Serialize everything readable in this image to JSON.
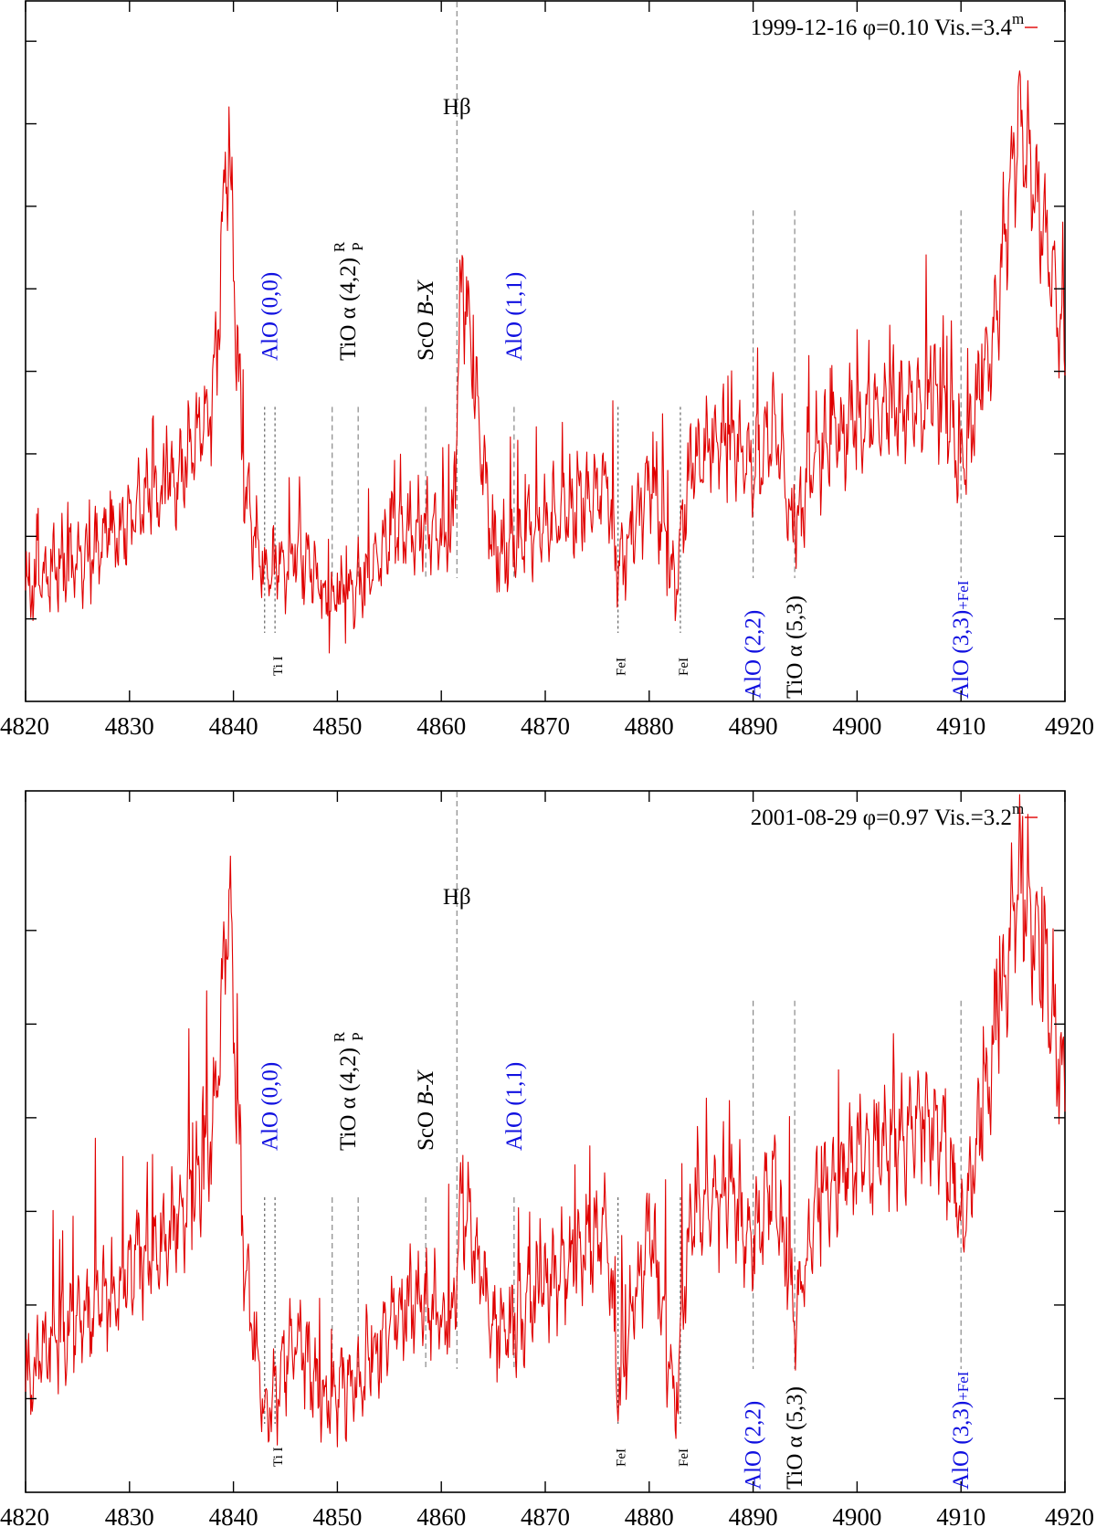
{
  "colors": {
    "spectrum": "#e00000",
    "blue_label": "#1010e0",
    "black_label": "#000000",
    "guide_line": "#888888"
  },
  "chart_data": [
    {
      "type": "line",
      "title": "",
      "xlabel": "",
      "ylabel": "",
      "xlim": [
        4820,
        4920
      ],
      "x_ticks": [
        4820,
        4830,
        4840,
        4850,
        4860,
        4870,
        4880,
        4890,
        4900,
        4910,
        4920
      ],
      "x_tick_labels": [
        "4820",
        "4830",
        "4840",
        "4850",
        "4860",
        "4870",
        "4880",
        "4890",
        "4900",
        "4910",
        "4920"
      ],
      "ylim": [
        0,
        8.5
      ],
      "y_ticks": [
        1,
        2,
        3,
        4,
        5,
        6,
        7,
        8
      ],
      "legend": {
        "position": "top-right",
        "entries": [
          {
            "text": "1999-12-16 φ=0.10 Vis.=3.4",
            "superscript": "m"
          }
        ]
      },
      "series": [
        {
          "name": "1999-12-16 φ=0.10 Vis.=3.4m",
          "x": [
            4820,
            4823,
            4826,
            4829,
            4832,
            4835,
            4838,
            4839.5,
            4841,
            4843,
            4846,
            4849,
            4852,
            4855,
            4858,
            4861,
            4862,
            4865,
            4868,
            4872,
            4876,
            4877,
            4880,
            4882.5,
            4884,
            4888,
            4890,
            4892,
            4894,
            4896,
            4900,
            4904,
            4908,
            4910,
            4913,
            4915.5,
            4918,
            4920
          ],
          "y": [
            1.3,
            1.6,
            1.8,
            2.1,
            2.5,
            2.8,
            3.5,
            6.7,
            2.6,
            1.5,
            1.8,
            1.2,
            1.4,
            2.0,
            2.2,
            1.9,
            5.2,
            1.8,
            2.0,
            2.3,
            2.6,
            1.5,
            2.7,
            1.5,
            2.9,
            3.2,
            2.8,
            3.4,
            2.0,
            3.0,
            3.4,
            3.6,
            3.7,
            2.8,
            4.4,
            7.0,
            5.8,
            4.2
          ]
        }
      ],
      "annotations": [
        {
          "text": "Hβ",
          "x": 4861.5,
          "color": "black",
          "orientation": "horizontal",
          "placement": "top"
        },
        {
          "text": "AlO (0,0)",
          "x": 4843.5,
          "color": "blue",
          "orientation": "vertical",
          "placement": "upper"
        },
        {
          "text": "TiO α (4,2)",
          "sup": "R",
          "sub": "P",
          "x": 4851,
          "color": "black",
          "orientation": "vertical",
          "placement": "upper"
        },
        {
          "text": "ScO ",
          "italic": "B-X",
          "x": 4858.5,
          "color": "black",
          "orientation": "vertical",
          "placement": "upper"
        },
        {
          "text": "AlO (1,1)",
          "x": 4867,
          "color": "blue",
          "orientation": "vertical",
          "placement": "upper"
        },
        {
          "text": "Ti I",
          "x": 4844,
          "color": "black",
          "orientation": "vertical",
          "placement": "bottom",
          "size": "small"
        },
        {
          "text": "FeI",
          "x": 4877,
          "color": "black",
          "orientation": "vertical",
          "placement": "bottom",
          "size": "small"
        },
        {
          "text": "FeI",
          "x": 4883,
          "color": "black",
          "orientation": "vertical",
          "placement": "bottom",
          "size": "small"
        },
        {
          "text": "AlO (2,2)",
          "x": 4890,
          "color": "blue",
          "orientation": "vertical",
          "placement": "lower"
        },
        {
          "text": "TiO α (5,3)",
          "x": 4894,
          "color": "black",
          "orientation": "vertical",
          "placement": "lower"
        },
        {
          "text": "AlO (3,3)",
          "suffix": "+FeI",
          "x": 4910,
          "color": "blue",
          "orientation": "vertical",
          "placement": "lower"
        }
      ],
      "guide_lines": [
        4843,
        4844,
        4849.5,
        4852,
        4858.5,
        4861.5,
        4867,
        4877,
        4883,
        4890,
        4894,
        4910
      ]
    },
    {
      "type": "line",
      "title": "",
      "xlabel": "",
      "ylabel": "",
      "xlim": [
        4820,
        4920
      ],
      "x_ticks": [
        4820,
        4830,
        4840,
        4850,
        4860,
        4870,
        4880,
        4890,
        4900,
        4910,
        4920
      ],
      "x_tick_labels": [
        "4820",
        "4830",
        "4840",
        "4850",
        "4860",
        "4870",
        "4880",
        "4890",
        "4900",
        "4910",
        "4920"
      ],
      "ylim": [
        0,
        7.5
      ],
      "y_ticks": [
        1,
        2,
        3,
        4,
        5,
        6
      ],
      "legend": {
        "position": "top-right",
        "entries": [
          {
            "text": "2001-08-29 φ=0.97 Vis.=3.2",
            "superscript": "m"
          }
        ]
      },
      "series": [
        {
          "name": "2001-08-29 φ=0.97 Vis.=3.2m",
          "x": [
            4820,
            4823,
            4826,
            4829,
            4832,
            4835,
            4838,
            4839.5,
            4841,
            4843,
            4846,
            4849,
            4852,
            4855,
            4858,
            4861,
            4862,
            4865,
            4868,
            4872,
            4876,
            4877,
            4880,
            4882.5,
            4884,
            4888,
            4890,
            4892,
            4894,
            4896,
            4900,
            4904,
            4908,
            4910,
            4913,
            4915.5,
            4918,
            4920
          ],
          "y": [
            1.2,
            1.6,
            1.9,
            2.2,
            2.6,
            2.9,
            3.8,
            6.4,
            2.5,
            0.8,
            1.6,
            1.0,
            1.2,
            1.8,
            2.1,
            1.8,
            3.2,
            1.7,
            1.9,
            2.4,
            2.8,
            1.0,
            2.9,
            0.9,
            3.0,
            3.2,
            2.6,
            3.4,
            1.8,
            3.0,
            3.6,
            3.8,
            4.0,
            2.8,
            4.6,
            6.6,
            5.6,
            4.2
          ]
        }
      ],
      "annotations": [
        {
          "text": "Hβ",
          "x": 4861.5,
          "color": "black",
          "orientation": "horizontal",
          "placement": "top"
        },
        {
          "text": "AlO (0,0)",
          "x": 4843.5,
          "color": "blue",
          "orientation": "vertical",
          "placement": "upper"
        },
        {
          "text": "TiO α (4,2)",
          "sup": "R",
          "sub": "P",
          "x": 4851,
          "color": "black",
          "orientation": "vertical",
          "placement": "upper"
        },
        {
          "text": "ScO ",
          "italic": "B-X",
          "x": 4858.5,
          "color": "black",
          "orientation": "vertical",
          "placement": "upper"
        },
        {
          "text": "AlO (1,1)",
          "x": 4867,
          "color": "blue",
          "orientation": "vertical",
          "placement": "upper"
        },
        {
          "text": "Ti I",
          "x": 4844,
          "color": "black",
          "orientation": "vertical",
          "placement": "bottom",
          "size": "small"
        },
        {
          "text": "FeI",
          "x": 4877,
          "color": "black",
          "orientation": "vertical",
          "placement": "bottom",
          "size": "small"
        },
        {
          "text": "FeI",
          "x": 4883,
          "color": "black",
          "orientation": "vertical",
          "placement": "bottom",
          "size": "small"
        },
        {
          "text": "AlO (2,2)",
          "x": 4890,
          "color": "blue",
          "orientation": "vertical",
          "placement": "lower"
        },
        {
          "text": "TiO α (5,3)",
          "x": 4894,
          "color": "black",
          "orientation": "vertical",
          "placement": "lower"
        },
        {
          "text": "AlO (3,3)",
          "suffix": "+FeI",
          "x": 4910,
          "color": "blue",
          "orientation": "vertical",
          "placement": "lower"
        }
      ],
      "guide_lines": [
        4843,
        4844,
        4849.5,
        4852,
        4858.5,
        4861.5,
        4867,
        4877,
        4883,
        4890,
        4894,
        4910
      ]
    }
  ]
}
